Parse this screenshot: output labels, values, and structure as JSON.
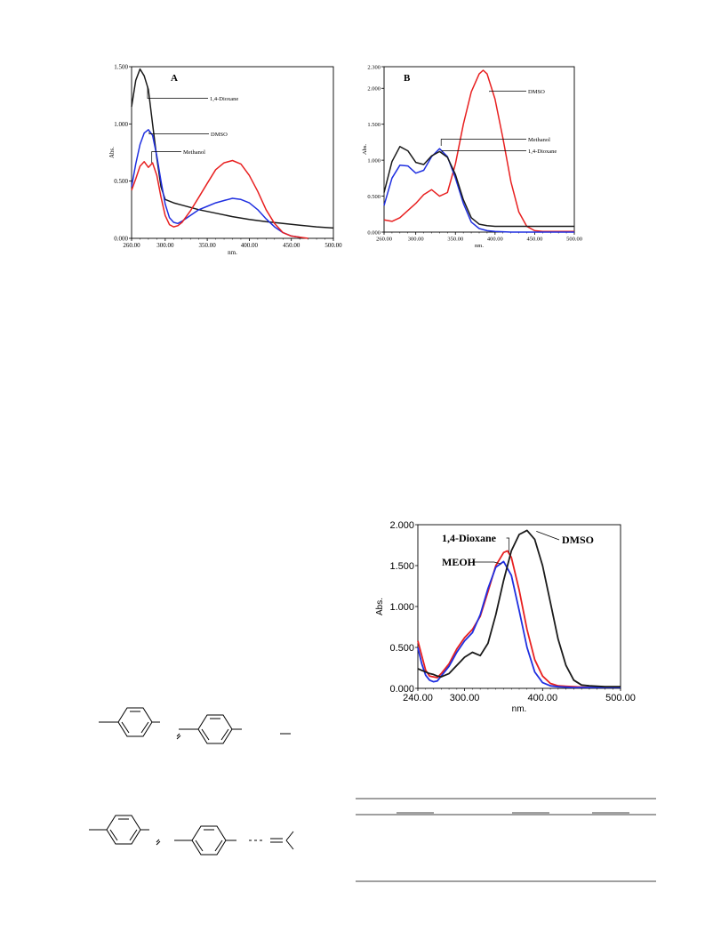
{
  "charts": [
    {
      "panel_label": "A",
      "axis_unit": "nm.",
      "y_axis_label": "Abs.",
      "x_ticks": [
        "260.00",
        "300.00",
        "350.00",
        "400.00",
        "450.00",
        "500.00"
      ],
      "y_ticks": [
        "0.000",
        "0.500",
        "1.000",
        "1.500"
      ],
      "series_labels": [
        "1,4-Dioxane",
        "DMSO",
        "Methanol"
      ]
    },
    {
      "panel_label": "B",
      "axis_unit": "nm.",
      "y_axis_label": "Abs.",
      "x_ticks": [
        "260.00",
        "300.00",
        "350.00",
        "400.00",
        "450.00",
        "500.00"
      ],
      "y_ticks": [
        "0.000",
        "0.500",
        "1.000",
        "1.500",
        "2.000",
        "2.300"
      ],
      "series_labels": [
        "DMSO",
        "Methanol",
        "1,4-Dioxane"
      ]
    },
    {
      "panel_label": "",
      "axis_unit": "nm.",
      "y_axis_label": "Abs.",
      "x_ticks": [
        "240.00",
        "300.00",
        "400.00",
        "500.00"
      ],
      "y_ticks": [
        "0.000",
        "0.500",
        "1.000",
        "1.500",
        "2.000"
      ],
      "series_labels": [
        "1,4-Dioxane",
        "DMSO",
        "MEOH"
      ]
    }
  ],
  "colors": {
    "black_series": "#1a1a1a",
    "blue_series": "#1f2fe0",
    "red_series": "#e82020"
  },
  "chart_data": [
    {
      "type": "line",
      "title": "A",
      "xlabel": "nm.",
      "ylabel": "Abs.",
      "xlim": [
        260,
        500
      ],
      "ylim": [
        0,
        1.5
      ],
      "grid": false,
      "series": [
        {
          "name": "1,4-Dioxane",
          "color": "#1a1a1a",
          "x": [
            260,
            265,
            270,
            275,
            280,
            285,
            290,
            295,
            300,
            310,
            320,
            340,
            360,
            380,
            400,
            420,
            440,
            460,
            480,
            500
          ],
          "y": [
            1.15,
            1.38,
            1.48,
            1.42,
            1.3,
            1.0,
            0.7,
            0.45,
            0.34,
            0.31,
            0.29,
            0.25,
            0.22,
            0.19,
            0.165,
            0.145,
            0.13,
            0.115,
            0.1,
            0.09
          ]
        },
        {
          "name": "DMSO",
          "color": "#1f2fe0",
          "x": [
            260,
            265,
            270,
            275,
            280,
            285,
            290,
            295,
            300,
            305,
            310,
            315,
            320,
            330,
            340,
            350,
            360,
            370,
            380,
            390,
            400,
            410,
            420,
            430,
            440,
            450,
            460
          ],
          "y": [
            0.45,
            0.65,
            0.82,
            0.92,
            0.95,
            0.9,
            0.72,
            0.5,
            0.3,
            0.18,
            0.14,
            0.13,
            0.15,
            0.2,
            0.25,
            0.28,
            0.31,
            0.33,
            0.35,
            0.34,
            0.31,
            0.25,
            0.17,
            0.1,
            0.05,
            0.02,
            0.01
          ]
        },
        {
          "name": "Methanol",
          "color": "#e82020",
          "x": [
            260,
            265,
            270,
            275,
            280,
            285,
            290,
            295,
            300,
            305,
            310,
            315,
            320,
            330,
            340,
            350,
            360,
            370,
            380,
            390,
            400,
            410,
            420,
            430,
            440,
            450,
            460,
            470
          ],
          "y": [
            0.42,
            0.52,
            0.63,
            0.67,
            0.62,
            0.66,
            0.55,
            0.36,
            0.2,
            0.12,
            0.1,
            0.11,
            0.14,
            0.24,
            0.36,
            0.48,
            0.6,
            0.66,
            0.68,
            0.65,
            0.55,
            0.41,
            0.25,
            0.13,
            0.05,
            0.02,
            0.01,
            0.0
          ]
        }
      ]
    },
    {
      "type": "line",
      "title": "B",
      "xlabel": "nm.",
      "ylabel": "Abs.",
      "xlim": [
        260,
        500
      ],
      "ylim": [
        0,
        2.3
      ],
      "grid": false,
      "series": [
        {
          "name": "DMSO",
          "color": "#e82020",
          "x": [
            260,
            270,
            280,
            290,
            300,
            310,
            320,
            330,
            340,
            350,
            360,
            370,
            380,
            385,
            390,
            400,
            410,
            420,
            430,
            440,
            450,
            460,
            480,
            500
          ],
          "y": [
            0.17,
            0.15,
            0.2,
            0.3,
            0.4,
            0.52,
            0.59,
            0.5,
            0.55,
            0.95,
            1.5,
            1.95,
            2.2,
            2.25,
            2.2,
            1.85,
            1.3,
            0.7,
            0.28,
            0.08,
            0.02,
            0.01,
            0.01,
            0.01
          ]
        },
        {
          "name": "Methanol",
          "color": "#1f2fe0",
          "x": [
            260,
            270,
            280,
            290,
            300,
            310,
            320,
            330,
            340,
            350,
            360,
            370,
            380,
            390,
            400,
            420,
            440,
            460,
            480,
            500
          ],
          "y": [
            0.37,
            0.75,
            0.93,
            0.92,
            0.82,
            0.86,
            1.05,
            1.16,
            1.05,
            0.75,
            0.4,
            0.14,
            0.05,
            0.02,
            0.01,
            0.0,
            0.0,
            0.0,
            0.0,
            0.0
          ]
        },
        {
          "name": "1,4-Dioxane",
          "color": "#1a1a1a",
          "x": [
            260,
            270,
            280,
            290,
            300,
            310,
            320,
            330,
            340,
            350,
            360,
            370,
            380,
            390,
            400,
            420,
            440,
            460,
            480,
            500
          ],
          "y": [
            0.55,
            0.98,
            1.19,
            1.13,
            0.97,
            0.94,
            1.06,
            1.12,
            1.04,
            0.8,
            0.45,
            0.2,
            0.11,
            0.09,
            0.08,
            0.08,
            0.08,
            0.08,
            0.08,
            0.08
          ]
        }
      ]
    },
    {
      "type": "line",
      "title": "",
      "xlabel": "nm.",
      "ylabel": "Abs.",
      "xlim": [
        240,
        500
      ],
      "ylim": [
        0,
        2.0
      ],
      "grid": false,
      "series": [
        {
          "name": "1,4-Dioxane",
          "color": "#e82020",
          "x": [
            240,
            245,
            250,
            255,
            260,
            265,
            270,
            280,
            290,
            300,
            310,
            320,
            330,
            340,
            350,
            355,
            360,
            370,
            380,
            390,
            400,
            410,
            420,
            440,
            460,
            480,
            500
          ],
          "y": [
            0.58,
            0.4,
            0.22,
            0.15,
            0.14,
            0.13,
            0.18,
            0.3,
            0.48,
            0.62,
            0.72,
            0.88,
            1.18,
            1.5,
            1.66,
            1.68,
            1.6,
            1.2,
            0.72,
            0.35,
            0.15,
            0.06,
            0.03,
            0.02,
            0.01,
            0.01,
            0.01
          ]
        },
        {
          "name": "MEOH",
          "color": "#1f2fe0",
          "x": [
            240,
            245,
            250,
            255,
            260,
            265,
            270,
            280,
            290,
            300,
            310,
            320,
            330,
            340,
            350,
            360,
            370,
            380,
            390,
            400,
            410,
            420,
            440,
            460,
            480,
            500
          ],
          "y": [
            0.5,
            0.3,
            0.16,
            0.1,
            0.08,
            0.09,
            0.15,
            0.27,
            0.44,
            0.58,
            0.68,
            0.9,
            1.22,
            1.48,
            1.55,
            1.38,
            0.95,
            0.5,
            0.2,
            0.07,
            0.03,
            0.02,
            0.01,
            0.01,
            0.01,
            0.01
          ]
        },
        {
          "name": "DMSO",
          "color": "#1a1a1a",
          "x": [
            240,
            245,
            250,
            255,
            260,
            265,
            270,
            280,
            290,
            300,
            310,
            320,
            330,
            340,
            350,
            360,
            370,
            380,
            390,
            400,
            410,
            420,
            430,
            440,
            450,
            460,
            480,
            500
          ],
          "y": [
            0.24,
            0.22,
            0.2,
            0.18,
            0.17,
            0.15,
            0.14,
            0.18,
            0.28,
            0.38,
            0.44,
            0.4,
            0.55,
            0.9,
            1.32,
            1.68,
            1.88,
            1.93,
            1.82,
            1.5,
            1.05,
            0.6,
            0.28,
            0.1,
            0.04,
            0.03,
            0.02,
            0.02
          ]
        }
      ]
    }
  ]
}
